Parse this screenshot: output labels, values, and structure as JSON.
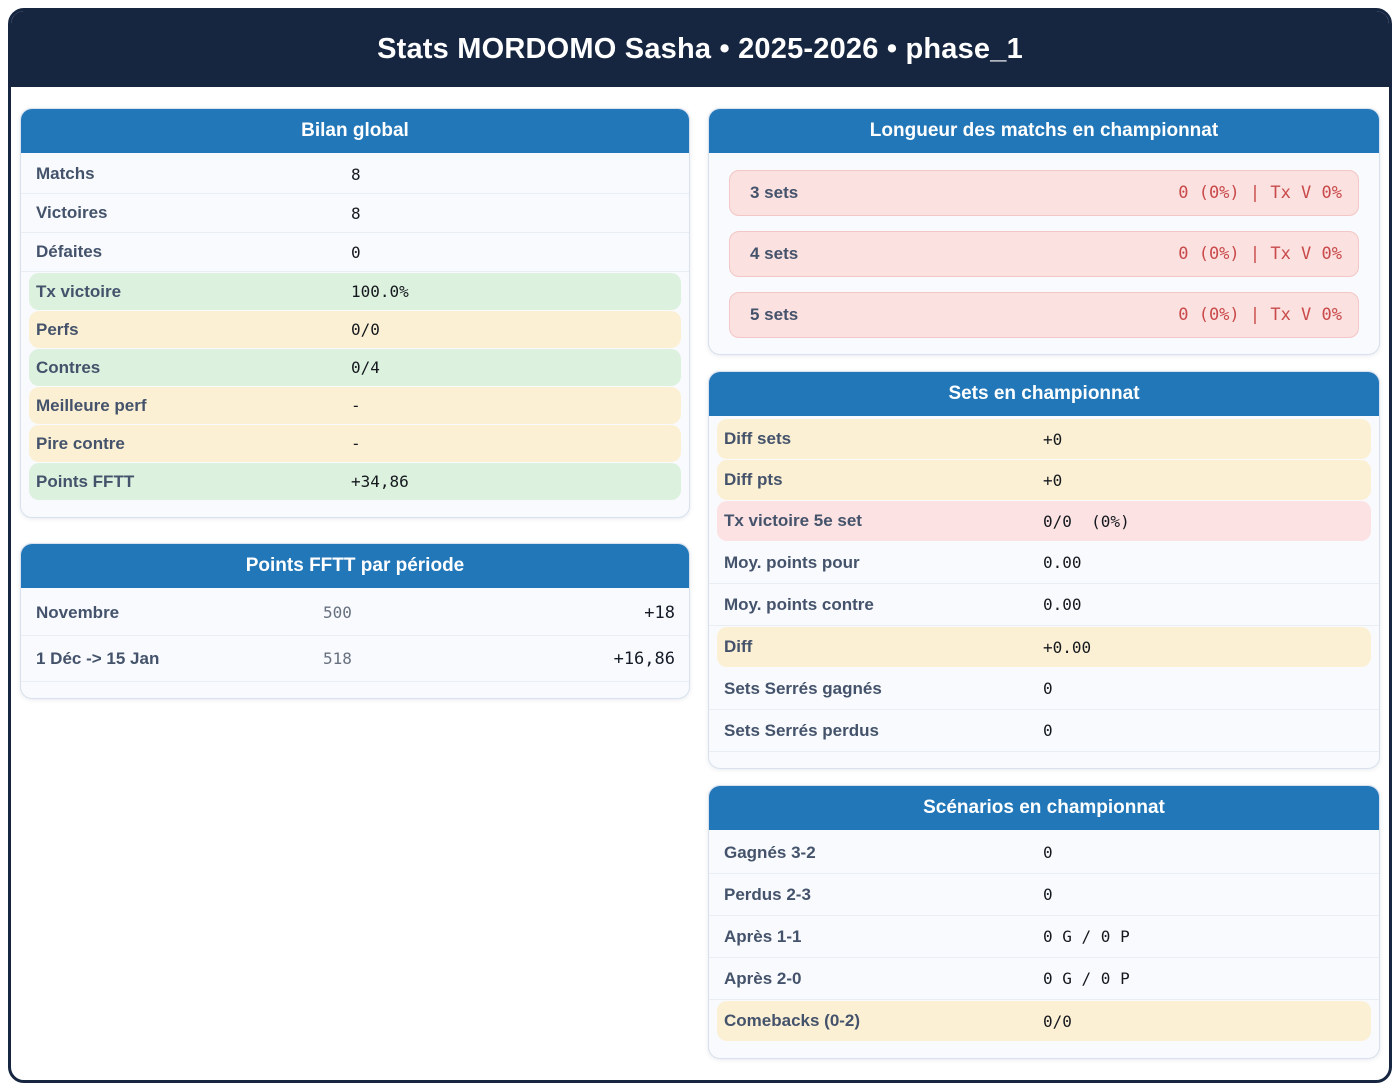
{
  "header": {
    "title": "Stats MORDOMO Sasha • 2025-2026 • phase_1"
  },
  "colors": {
    "navy": "#162540",
    "card_header_blue": "#2277b8",
    "label_slate": "#44536b",
    "highlight_green": "#dcf1de",
    "highlight_yellow": "#fcf0d4",
    "highlight_pink": "#fce2e2",
    "alert_red": "#c94a4a"
  },
  "cards": {
    "bilan_global": {
      "title": "Bilan global",
      "rows": [
        {
          "label": "Matchs",
          "value": "8",
          "highlight": "none"
        },
        {
          "label": "Victoires",
          "value": "8",
          "highlight": "none"
        },
        {
          "label": "Défaites",
          "value": "0",
          "highlight": "none"
        },
        {
          "label": "Tx victoire",
          "value": "100.0%",
          "highlight": "green"
        },
        {
          "label": "Perfs",
          "value": "0/0",
          "highlight": "yellow"
        },
        {
          "label": "Contres",
          "value": "0/4",
          "highlight": "green"
        },
        {
          "label": "Meilleure perf",
          "value": "-",
          "highlight": "yellow"
        },
        {
          "label": "Pire contre",
          "value": "-",
          "highlight": "yellow"
        },
        {
          "label": "Points FFTT",
          "value": "+34,86",
          "highlight": "green"
        }
      ]
    },
    "points_fftt_periode": {
      "title": "Points FFTT par période",
      "rows": [
        {
          "label": "Novembre",
          "points": "500",
          "delta": "+18"
        },
        {
          "label": "1 Déc -> 15 Jan",
          "points": "518",
          "delta": "+16,86"
        }
      ]
    },
    "longueur_matchs": {
      "title": "Longueur des matchs en championnat",
      "rows": [
        {
          "label": "3 sets",
          "value": "0 (0%) | Tx V 0%"
        },
        {
          "label": "4 sets",
          "value": "0 (0%) | Tx V 0%"
        },
        {
          "label": "5 sets",
          "value": "0 (0%) | Tx V 0%"
        }
      ]
    },
    "sets_championnat": {
      "title": "Sets en championnat",
      "rows": [
        {
          "label": "Diff sets",
          "value": "+0",
          "highlight": "yellow"
        },
        {
          "label": "Diff pts",
          "value": "+0",
          "highlight": "yellow"
        },
        {
          "label": "Tx victoire 5e set",
          "value": "0/0  (0%)",
          "highlight": "pink"
        },
        {
          "label": "Moy. points pour",
          "value": "0.00",
          "highlight": "none"
        },
        {
          "label": "Moy. points contre",
          "value": "0.00",
          "highlight": "none"
        },
        {
          "label": "Diff",
          "value": "+0.00",
          "highlight": "yellow"
        },
        {
          "label": "Sets Serrés gagnés",
          "value": "0",
          "highlight": "none"
        },
        {
          "label": "Sets Serrés perdus",
          "value": "0",
          "highlight": "none"
        }
      ]
    },
    "scenarios": {
      "title": "Scénarios en championnat",
      "rows": [
        {
          "label": "Gagnés 3-2",
          "value": "0",
          "highlight": "none"
        },
        {
          "label": "Perdus 2-3",
          "value": "0",
          "highlight": "none"
        },
        {
          "label": "Après 1-1",
          "value": "0 G / 0 P",
          "highlight": "none"
        },
        {
          "label": "Après 2-0",
          "value": "0 G / 0 P",
          "highlight": "none"
        },
        {
          "label": "Comebacks (0-2)",
          "value": "0/0",
          "highlight": "yellow"
        }
      ]
    }
  }
}
